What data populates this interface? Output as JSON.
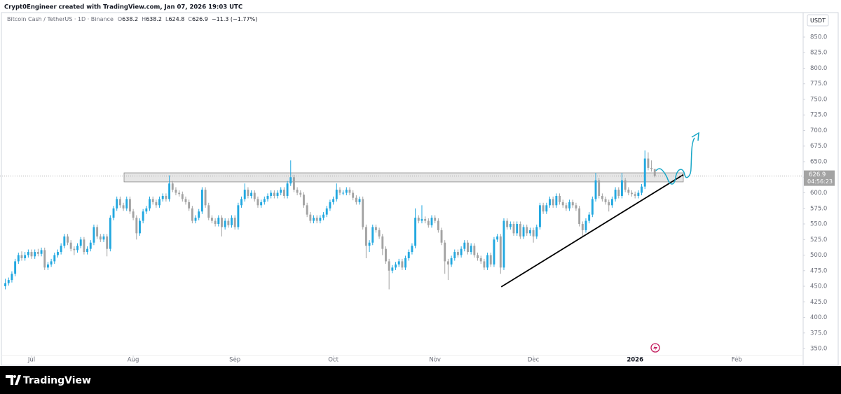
{
  "header": {
    "attribution": "Crypt0Engineer created with TradingView.com, Jan 07, 2026 19:03 UTC"
  },
  "footer": {
    "brand": "TradingView"
  },
  "chart_data": {
    "type": "candlestick",
    "symbol": "Bitcoin Cash / TetherUS · 1D · Binance",
    "ohlc_letters": [
      "O",
      "H",
      "L",
      "C"
    ],
    "change": "−11.3 (−1.77%)",
    "currency": "USDT",
    "countdown": "04:56:23",
    "up_color": "#22a8e0",
    "down_color": "#a3a3a3",
    "xlim": [
      -1.62,
      243.03
    ],
    "ylim": [
      338.8,
      889.3
    ],
    "xticks": [
      {
        "value": 8,
        "label": "Jul"
      },
      {
        "value": 39,
        "label": "Aug"
      },
      {
        "value": 70,
        "label": "Sep"
      },
      {
        "value": 100,
        "label": "Oct"
      },
      {
        "value": 131,
        "label": "Nov"
      },
      {
        "value": 161,
        "label": "Dec"
      },
      {
        "value": 192,
        "label": "2026"
      },
      {
        "value": 223,
        "label": "Feb"
      }
    ],
    "yticks": [
      {
        "value": 350,
        "label": "350.0"
      },
      {
        "value": 375,
        "label": "375.0"
      },
      {
        "value": 400,
        "label": "400.0"
      },
      {
        "value": 425,
        "label": "425.0"
      },
      {
        "value": 450,
        "label": "450.0"
      },
      {
        "value": 475,
        "label": "475.0"
      },
      {
        "value": 500,
        "label": "500.0"
      },
      {
        "value": 525,
        "label": "525.0"
      },
      {
        "value": 550,
        "label": "550.0"
      },
      {
        "value": 575,
        "label": "575.0"
      },
      {
        "value": 600,
        "label": "600.0"
      },
      {
        "value": 625,
        "label": "625.0"
      },
      {
        "value": 650,
        "label": "650.0"
      },
      {
        "value": 675,
        "label": "675.0"
      },
      {
        "value": 700,
        "label": "700.0"
      },
      {
        "value": 725,
        "label": "725.0"
      },
      {
        "value": 750,
        "label": "750.0"
      },
      {
        "value": 775,
        "label": "775.0"
      },
      {
        "value": 800,
        "label": "800.0"
      },
      {
        "value": 825,
        "label": "825.0"
      },
      {
        "value": 850,
        "label": "850.0"
      }
    ],
    "zone": {
      "x": [
        36.2,
        206.7
      ],
      "low": 617.5,
      "high": 632
    },
    "trendline": {
      "x": [
        151.2,
        206.7
      ],
      "y": [
        449,
        629
      ]
    },
    "candles": [
      [
        450,
        462,
        445,
        455
      ],
      [
        455,
        464,
        451,
        460
      ],
      [
        460,
        474,
        456,
        470
      ],
      [
        470,
        494,
        466,
        490
      ],
      [
        490,
        504,
        486,
        500
      ],
      [
        500,
        506,
        491,
        495
      ],
      [
        495,
        505,
        491,
        500
      ],
      [
        500,
        509,
        496,
        505
      ],
      [
        505,
        509,
        494,
        498
      ],
      [
        498,
        509,
        494,
        505
      ],
      [
        505,
        510,
        498,
        502
      ],
      [
        502,
        512,
        498,
        508
      ],
      [
        508,
        512,
        476,
        480
      ],
      [
        480,
        489,
        476,
        485
      ],
      [
        485,
        494,
        481,
        490
      ],
      [
        490,
        504,
        486,
        500
      ],
      [
        500,
        509,
        496,
        505
      ],
      [
        505,
        519,
        501,
        515
      ],
      [
        515,
        534,
        511,
        530
      ],
      [
        530,
        534,
        516,
        520
      ],
      [
        520,
        524,
        506,
        510
      ],
      [
        510,
        514,
        500,
        508
      ],
      [
        508,
        519,
        504,
        515
      ],
      [
        515,
        529,
        511,
        525
      ],
      [
        525,
        529,
        501,
        505
      ],
      [
        505,
        514,
        501,
        510
      ],
      [
        510,
        524,
        506,
        520
      ],
      [
        520,
        549,
        516,
        545
      ],
      [
        545,
        549,
        526,
        530
      ],
      [
        530,
        534,
        521,
        525
      ],
      [
        525,
        534,
        521,
        530
      ],
      [
        530,
        534,
        498,
        510
      ],
      [
        510,
        564,
        506,
        560
      ],
      [
        560,
        579,
        556,
        575
      ],
      [
        575,
        594,
        571,
        590
      ],
      [
        590,
        594,
        576,
        580
      ],
      [
        580,
        584,
        571,
        575
      ],
      [
        575,
        594,
        571,
        590
      ],
      [
        590,
        594,
        566,
        570
      ],
      [
        570,
        574,
        556,
        560
      ],
      [
        560,
        564,
        525,
        535
      ],
      [
        535,
        559,
        531,
        555
      ],
      [
        555,
        574,
        551,
        570
      ],
      [
        570,
        579,
        566,
        575
      ],
      [
        575,
        594,
        571,
        590
      ],
      [
        590,
        594,
        581,
        585
      ],
      [
        585,
        589,
        576,
        580
      ],
      [
        580,
        594,
        576,
        590
      ],
      [
        590,
        599,
        586,
        595
      ],
      [
        595,
        599,
        586,
        590
      ],
      [
        590,
        628,
        586,
        615
      ],
      [
        615,
        619,
        601,
        605
      ],
      [
        605,
        609,
        596,
        600
      ],
      [
        600,
        604,
        594,
        598
      ],
      [
        598,
        602,
        586,
        590
      ],
      [
        590,
        594,
        581,
        585
      ],
      [
        585,
        589,
        571,
        575
      ],
      [
        575,
        579,
        551,
        555
      ],
      [
        555,
        564,
        551,
        560
      ],
      [
        560,
        574,
        556,
        570
      ],
      [
        570,
        609,
        566,
        605
      ],
      [
        605,
        609,
        576,
        580
      ],
      [
        580,
        584,
        556,
        560
      ],
      [
        560,
        564,
        551,
        555
      ],
      [
        555,
        559,
        546,
        550
      ],
      [
        550,
        564,
        546,
        560
      ],
      [
        560,
        564,
        530,
        545
      ],
      [
        545,
        559,
        541,
        555
      ],
      [
        555,
        559,
        544,
        548
      ],
      [
        548,
        564,
        544,
        560
      ],
      [
        560,
        564,
        541,
        545
      ],
      [
        545,
        584,
        541,
        580
      ],
      [
        580,
        594,
        576,
        590
      ],
      [
        590,
        615,
        586,
        605
      ],
      [
        605,
        609,
        591,
        595
      ],
      [
        595,
        604,
        591,
        600
      ],
      [
        600,
        604,
        586,
        590
      ],
      [
        590,
        594,
        576,
        580
      ],
      [
        580,
        589,
        576,
        585
      ],
      [
        585,
        594,
        581,
        590
      ],
      [
        590,
        599,
        586,
        595
      ],
      [
        595,
        604,
        591,
        600
      ],
      [
        600,
        604,
        591,
        595
      ],
      [
        595,
        604,
        591,
        600
      ],
      [
        600,
        609,
        596,
        605
      ],
      [
        605,
        609,
        591,
        595
      ],
      [
        595,
        619,
        591,
        615
      ],
      [
        615,
        652,
        611,
        625
      ],
      [
        625,
        629,
        601,
        605
      ],
      [
        605,
        609,
        596,
        600
      ],
      [
        600,
        604,
        593,
        597
      ],
      [
        597,
        601,
        576,
        580
      ],
      [
        580,
        584,
        561,
        565
      ],
      [
        565,
        569,
        551,
        555
      ],
      [
        555,
        564,
        551,
        560
      ],
      [
        560,
        564,
        551,
        555
      ],
      [
        555,
        564,
        551,
        560
      ],
      [
        560,
        569,
        556,
        565
      ],
      [
        565,
        579,
        561,
        575
      ],
      [
        575,
        589,
        571,
        585
      ],
      [
        585,
        594,
        581,
        590
      ],
      [
        590,
        615,
        586,
        605
      ],
      [
        605,
        609,
        596,
        600
      ],
      [
        600,
        604,
        596,
        600
      ],
      [
        600,
        609,
        596,
        605
      ],
      [
        605,
        609,
        596,
        600
      ],
      [
        600,
        604,
        588,
        592
      ],
      [
        592,
        596,
        581,
        585
      ],
      [
        585,
        594,
        581,
        590
      ],
      [
        590,
        594,
        541,
        545
      ],
      [
        545,
        549,
        495,
        515
      ],
      [
        515,
        524,
        505,
        520
      ],
      [
        520,
        549,
        516,
        545
      ],
      [
        545,
        549,
        536,
        540
      ],
      [
        540,
        544,
        526,
        530
      ],
      [
        530,
        534,
        500,
        510
      ],
      [
        510,
        514,
        486,
        490
      ],
      [
        490,
        494,
        445,
        475
      ],
      [
        475,
        484,
        471,
        480
      ],
      [
        480,
        489,
        476,
        485
      ],
      [
        485,
        494,
        481,
        490
      ],
      [
        490,
        494,
        476,
        480
      ],
      [
        480,
        499,
        476,
        495
      ],
      [
        495,
        509,
        491,
        505
      ],
      [
        505,
        519,
        501,
        515
      ],
      [
        515,
        575,
        511,
        560
      ],
      [
        560,
        564,
        551,
        555
      ],
      [
        555,
        580,
        551,
        558
      ],
      [
        558,
        562,
        551,
        555
      ],
      [
        555,
        559,
        544,
        548
      ],
      [
        548,
        564,
        544,
        560
      ],
      [
        560,
        564,
        551,
        555
      ],
      [
        555,
        559,
        536,
        540
      ],
      [
        540,
        544,
        516,
        520
      ],
      [
        520,
        524,
        470,
        490
      ],
      [
        490,
        494,
        460,
        485
      ],
      [
        485,
        499,
        481,
        495
      ],
      [
        495,
        509,
        491,
        505
      ],
      [
        505,
        509,
        496,
        500
      ],
      [
        500,
        514,
        496,
        510
      ],
      [
        510,
        524,
        506,
        520
      ],
      [
        520,
        524,
        501,
        505
      ],
      [
        505,
        519,
        501,
        515
      ],
      [
        515,
        519,
        496,
        500
      ],
      [
        500,
        504,
        491,
        495
      ],
      [
        495,
        499,
        486,
        490
      ],
      [
        490,
        494,
        476,
        480
      ],
      [
        480,
        504,
        476,
        500
      ],
      [
        500,
        504,
        481,
        485
      ],
      [
        485,
        529,
        481,
        525
      ],
      [
        525,
        534,
        521,
        530
      ],
      [
        530,
        534,
        470,
        480
      ],
      [
        480,
        559,
        476,
        555
      ],
      [
        555,
        559,
        541,
        545
      ],
      [
        545,
        554,
        541,
        550
      ],
      [
        550,
        554,
        531,
        535
      ],
      [
        535,
        554,
        531,
        550
      ],
      [
        550,
        554,
        526,
        530
      ],
      [
        530,
        549,
        526,
        545
      ],
      [
        545,
        549,
        531,
        535
      ],
      [
        535,
        544,
        531,
        540
      ],
      [
        540,
        544,
        520,
        530
      ],
      [
        530,
        549,
        526,
        545
      ],
      [
        545,
        584,
        541,
        580
      ],
      [
        580,
        584,
        566,
        570
      ],
      [
        570,
        584,
        566,
        580
      ],
      [
        580,
        594,
        576,
        590
      ],
      [
        590,
        594,
        576,
        580
      ],
      [
        580,
        599,
        576,
        595
      ],
      [
        595,
        599,
        581,
        585
      ],
      [
        585,
        589,
        576,
        580
      ],
      [
        580,
        584,
        571,
        575
      ],
      [
        575,
        589,
        571,
        585
      ],
      [
        585,
        589,
        576,
        580
      ],
      [
        580,
        584,
        571,
        575
      ],
      [
        575,
        579,
        546,
        550
      ],
      [
        550,
        554,
        530,
        540
      ],
      [
        540,
        559,
        536,
        555
      ],
      [
        555,
        569,
        551,
        565
      ],
      [
        565,
        594,
        561,
        590
      ],
      [
        590,
        632,
        586,
        620
      ],
      [
        620,
        624,
        591,
        595
      ],
      [
        595,
        599,
        586,
        590
      ],
      [
        590,
        594,
        581,
        585
      ],
      [
        585,
        589,
        570,
        580
      ],
      [
        580,
        594,
        576,
        590
      ],
      [
        590,
        609,
        586,
        605
      ],
      [
        605,
        609,
        591,
        595
      ],
      [
        595,
        632,
        591,
        620
      ],
      [
        620,
        624,
        601,
        605
      ],
      [
        605,
        609,
        596,
        600
      ],
      [
        600,
        604,
        594,
        598
      ],
      [
        598,
        602,
        591,
        595
      ],
      [
        595,
        604,
        591,
        600
      ],
      [
        600,
        614,
        596,
        610
      ],
      [
        610,
        668,
        606,
        655
      ],
      [
        655,
        665,
        636,
        640
      ],
      [
        640,
        652,
        634,
        638.2
      ],
      [
        638.2,
        638.2,
        624.8,
        626.9
      ]
    ]
  }
}
